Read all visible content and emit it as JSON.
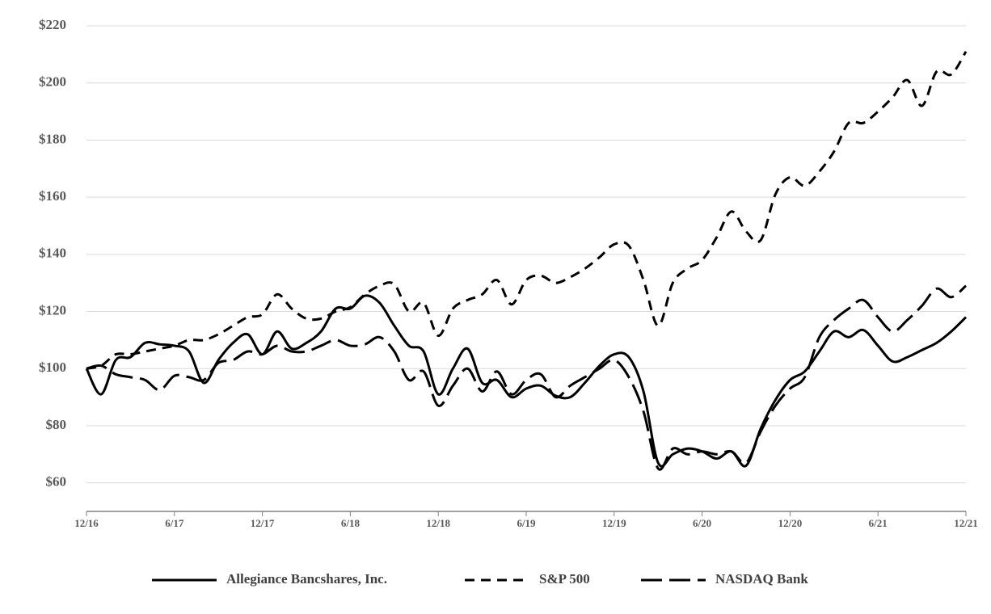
{
  "chart_data": {
    "type": "line",
    "categories": [
      "12/16",
      null,
      null,
      null,
      null,
      null,
      "6/17",
      null,
      null,
      null,
      null,
      null,
      "12/17",
      null,
      null,
      null,
      null,
      null,
      "6/18",
      null,
      null,
      null,
      null,
      null,
      "12/18",
      null,
      null,
      null,
      null,
      null,
      "6/19",
      null,
      null,
      null,
      null,
      null,
      "12/19",
      null,
      null,
      null,
      null,
      null,
      "6/20",
      null,
      null,
      null,
      null,
      null,
      "12/20",
      null,
      null,
      null,
      null,
      null,
      "6/21",
      null,
      null,
      null,
      null,
      null,
      "12/21"
    ],
    "series": [
      {
        "name": "Allegiance Bancshares, Inc.",
        "color": "#000000",
        "line_style": "solid",
        "values": [
          100,
          91,
          103,
          104,
          109,
          108.5,
          108,
          106,
          95,
          103,
          109,
          112,
          105,
          113,
          107,
          109,
          113,
          121,
          121,
          125.5,
          123,
          115,
          108,
          106,
          91,
          100,
          107,
          95,
          96,
          90,
          93,
          94,
          90.5,
          90,
          95,
          101,
          105,
          104,
          92,
          67,
          70,
          72,
          71,
          68.5,
          71,
          66,
          79,
          89,
          96,
          99,
          106,
          113,
          111,
          113.5,
          108,
          102.5,
          104,
          106.5,
          109,
          113,
          118
        ]
      },
      {
        "name": "S&P 500",
        "color": "#000000",
        "line_style": "dashed",
        "values": [
          100,
          101,
          105,
          105,
          106,
          107,
          108,
          110,
          110,
          112,
          115,
          118,
          119,
          126,
          121,
          117.5,
          117.5,
          120,
          121.5,
          126,
          129,
          129.5,
          120,
          123,
          111.5,
          121,
          124,
          126,
          131,
          122.5,
          131,
          132.5,
          130,
          132,
          135,
          139,
          143.5,
          143,
          131,
          115,
          130,
          135,
          138,
          146,
          155,
          148,
          145,
          161,
          167,
          164,
          169,
          176,
          186,
          186,
          190,
          195,
          201,
          192,
          204,
          203,
          211
        ]
      },
      {
        "name": "NASDAQ Bank",
        "color": "#000000",
        "line_style": "longdash",
        "values": [
          100,
          101,
          98,
          97,
          96,
          92.5,
          97.5,
          97,
          96,
          102,
          103,
          106,
          105,
          108,
          106,
          106,
          108,
          110,
          108,
          108.5,
          111,
          106,
          96,
          99,
          87,
          94,
          100,
          92,
          99,
          91,
          96,
          98,
          90,
          94,
          97,
          100,
          103,
          97,
          85,
          65,
          72,
          70,
          71,
          70,
          71,
          67,
          78,
          87,
          93,
          97,
          111,
          117,
          121,
          124,
          118,
          113,
          117,
          122,
          128,
          125,
          129
        ]
      }
    ],
    "ylim": [
      50,
      220
    ],
    "yticks": [
      {
        "value": 60,
        "label": "$60"
      },
      {
        "value": 80,
        "label": "$80"
      },
      {
        "value": 100,
        "label": "$100"
      },
      {
        "value": 120,
        "label": "$120"
      },
      {
        "value": 140,
        "label": "$140"
      },
      {
        "value": 160,
        "label": "$160"
      },
      {
        "value": 180,
        "label": "$180"
      },
      {
        "value": 200,
        "label": "$200"
      },
      {
        "value": 220,
        "label": "$220"
      }
    ],
    "grid": true,
    "legend": "bottom"
  }
}
